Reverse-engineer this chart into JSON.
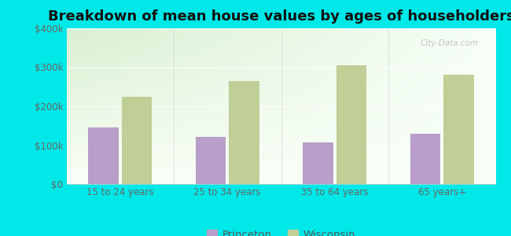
{
  "title": "Breakdown of mean house values by ages of householders",
  "categories": [
    "15 to 24 years",
    "25 to 34 years",
    "35 to 64 years",
    "65 years+"
  ],
  "princeton_values": [
    145000,
    122000,
    108000,
    130000
  ],
  "wisconsin_values": [
    225000,
    265000,
    305000,
    280000
  ],
  "princeton_color": "#b89ec8",
  "wisconsin_color": "#bfcf96",
  "background_color": "#00e8e8",
  "gradient_colors": [
    "#d0e8c0",
    "#e8f4e0",
    "#f2faf0",
    "#f8fcf8",
    "#ffffff"
  ],
  "ylim": [
    0,
    400000
  ],
  "yticks": [
    0,
    100000,
    200000,
    300000,
    400000
  ],
  "ytick_labels": [
    "$0",
    "$100k",
    "$200k",
    "$300k",
    "$400k"
  ],
  "legend_labels": [
    "Princeton",
    "Wisconsin"
  ],
  "watermark": "City-Data.com",
  "title_fontsize": 13,
  "tick_fontsize": 8.5,
  "legend_fontsize": 9.5,
  "bar_width": 0.28,
  "bar_gap": 0.03
}
